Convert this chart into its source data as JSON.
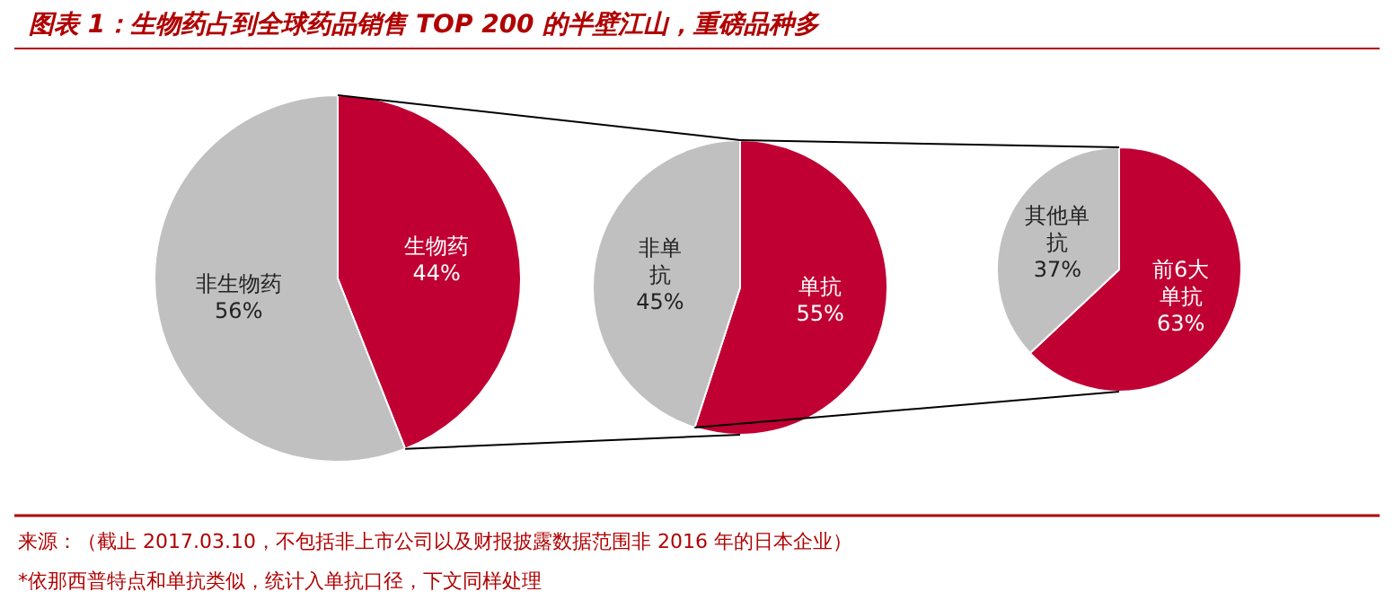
{
  "chart_data": [
    {
      "type": "pie",
      "title": "图表 1：生物药占到全球药品销售 TOP 200 的半壁江山，重磅品种多",
      "categories": [
        "生物药",
        "非生物药"
      ],
      "values": [
        44,
        56
      ],
      "colors": [
        "#c00033",
        "#c0c0c0"
      ],
      "value_labels": [
        "44%",
        "56%"
      ],
      "annotations": [
        "来源：（截止 2017.03.10，不包括非上市公司以及财报披露数据范围非 2016 年的日本企业）",
        "*依那西普特点和单抗类似，统计入单抗口径，下文同样处理"
      ]
    },
    {
      "type": "pie",
      "categories": [
        "单抗",
        "非单抗"
      ],
      "values": [
        55,
        45
      ],
      "colors": [
        "#c00033",
        "#c0c0c0"
      ],
      "value_labels": [
        "55%",
        "45%"
      ]
    },
    {
      "type": "pie",
      "categories": [
        "前6大单抗",
        "其他单抗"
      ],
      "values": [
        63,
        37
      ],
      "colors": [
        "#c00033",
        "#c0c0c0"
      ],
      "value_labels": [
        "63%",
        "37%"
      ]
    }
  ]
}
